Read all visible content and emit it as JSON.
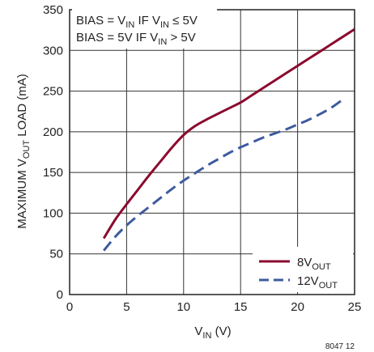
{
  "chart_data": {
    "type": "line",
    "xlabel_main": "V",
    "xlabel_sub": "IN",
    "xlabel_tail": " (V)",
    "ylabel_main": "MAXIMUM V",
    "ylabel_sub": "OUT",
    "ylabel_tail": " LOAD (mA)",
    "xlim": [
      0,
      25
    ],
    "ylim": [
      0,
      350
    ],
    "xticks": [
      "0",
      "5",
      "10",
      "15",
      "20",
      "25"
    ],
    "yticks": [
      "0",
      "50",
      "100",
      "150",
      "200",
      "250",
      "300",
      "350"
    ],
    "grid": true,
    "annotation_line1": {
      "a": "BIAS = V",
      "b": "IN",
      "c": " IF V",
      "d": "IN",
      "e": " ≤ 5V"
    },
    "annotation_line2": {
      "a": "BIAS = 5V IF V",
      "b": "IN",
      "c": " > 5V"
    },
    "figure_id": "8047 12",
    "legend_position": "bottom-right",
    "series": [
      {
        "name_main": "8V",
        "name_sub": "OUT",
        "color": "#8b0a2e",
        "dash": "solid",
        "x": [
          3,
          4,
          5,
          6,
          7,
          8,
          9,
          10,
          11,
          12,
          13,
          14,
          15,
          16,
          17,
          18,
          19,
          20,
          21,
          22,
          23,
          24,
          25
        ],
        "y": [
          69,
          92,
          111,
          129,
          147,
          164,
          181,
          196,
          207,
          215,
          222,
          229,
          236,
          245,
          254,
          263,
          272,
          281,
          290,
          299,
          308,
          317,
          326
        ]
      },
      {
        "name_main": "12V",
        "name_sub": "OUT",
        "color": "#3e5b9e",
        "dash": "dashed",
        "x": [
          3,
          4,
          5,
          6,
          7,
          8,
          9,
          10,
          11,
          12,
          13,
          14,
          15,
          16,
          17,
          18,
          19,
          20,
          21,
          22,
          23,
          24
        ],
        "y": [
          54,
          71,
          85,
          97,
          108,
          119,
          130,
          140,
          149,
          158,
          166,
          174,
          181,
          187,
          193,
          198,
          203,
          209,
          215,
          222,
          230,
          240
        ]
      }
    ]
  }
}
